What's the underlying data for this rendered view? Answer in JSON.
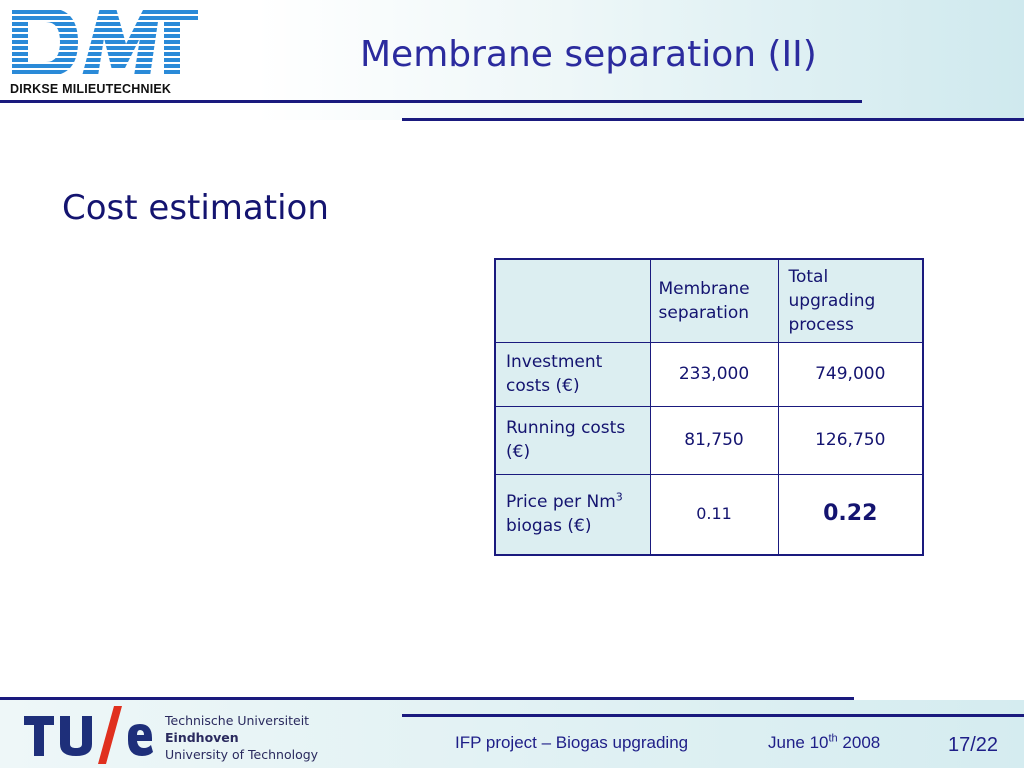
{
  "header": {
    "logo_text": "DMT",
    "logo_subtitle": "DIRKSE MILIEUTECHNIEK",
    "title": "Membrane separation (II)"
  },
  "main": {
    "subtitle": "Cost estimation",
    "table": {
      "columns": [
        "",
        "Membrane separation",
        "Total upgrading process"
      ],
      "rows": [
        {
          "label": "Investment costs (€)",
          "membrane": "233,000",
          "total": "749,000"
        },
        {
          "label": "Running costs (€)",
          "membrane": "81,750",
          "total": "126,750"
        },
        {
          "label_pre": "Price per Nm",
          "label_sup": "3",
          "label_post": " biogas (€)",
          "membrane": "0.11",
          "total": "0.22"
        }
      ]
    }
  },
  "footer": {
    "university": {
      "line1": "Technische Universiteit",
      "line2": "Eindhoven",
      "line3": "University of Technology",
      "logo_text": "TU/e"
    },
    "project": "IFP project – Biogas upgrading",
    "date_pre": "June 10",
    "date_sup": "th",
    "date_post": " 2008",
    "page": "17/22"
  },
  "colors": {
    "primary_navy": "#1a1a7e",
    "title_blue": "#2b2b9e",
    "logo_blue": "#2a8ad8",
    "table_header_bg": "#dceef1"
  }
}
